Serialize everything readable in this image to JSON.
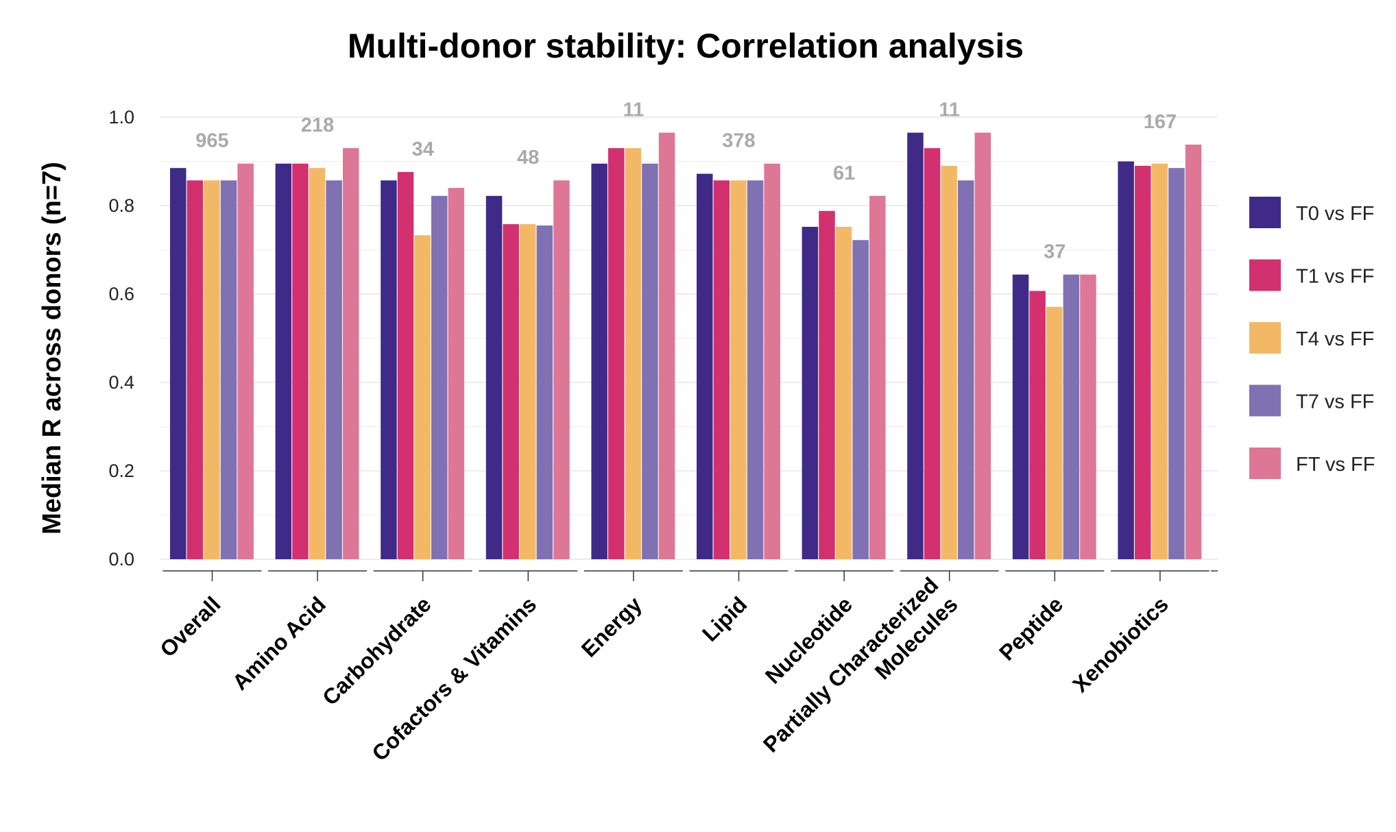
{
  "chart_data": {
    "type": "bar",
    "title": "Multi-donor stability: Correlation analysis",
    "xlabel": "",
    "ylabel": "Median R across donors (n=7)",
    "ylim": [
      0,
      1.0
    ],
    "yticks": [
      "0.0",
      "0.2",
      "0.4",
      "0.6",
      "0.8",
      "1.0"
    ],
    "grid": true,
    "legend_position": "right",
    "categories": [
      "Overall",
      "Amino Acid",
      "Carbohydrate",
      "Cofactors & Vitamins",
      "Energy",
      "Lipid",
      "Nucleotide",
      "Partially Characterized\nMolecules",
      "Peptide",
      "Xenobiotics"
    ],
    "counts": [
      "965",
      "218",
      "34",
      "48",
      "11",
      "378",
      "61",
      "11",
      "37",
      "167"
    ],
    "series": [
      {
        "name": "T0 vs FF",
        "color": "#3f2a88",
        "values": [
          0.885,
          0.895,
          0.857,
          0.822,
          0.895,
          0.872,
          0.752,
          0.965,
          0.644,
          0.9
        ]
      },
      {
        "name": "T1 vs FF",
        "color": "#d2306f",
        "values": [
          0.857,
          0.895,
          0.876,
          0.758,
          0.93,
          0.857,
          0.788,
          0.93,
          0.607,
          0.89
        ]
      },
      {
        "name": "T4 vs FF",
        "color": "#f3b866",
        "values": [
          0.857,
          0.885,
          0.733,
          0.758,
          0.93,
          0.857,
          0.752,
          0.89,
          0.571,
          0.895
        ]
      },
      {
        "name": "T7 vs FF",
        "color": "#7f71b2",
        "values": [
          0.857,
          0.857,
          0.822,
          0.755,
          0.895,
          0.857,
          0.722,
          0.857,
          0.644,
          0.885
        ]
      },
      {
        "name": "FT vs FF",
        "color": "#de7696",
        "values": [
          0.895,
          0.93,
          0.84,
          0.857,
          0.965,
          0.895,
          0.822,
          0.965,
          0.644,
          0.938
        ]
      }
    ]
  }
}
